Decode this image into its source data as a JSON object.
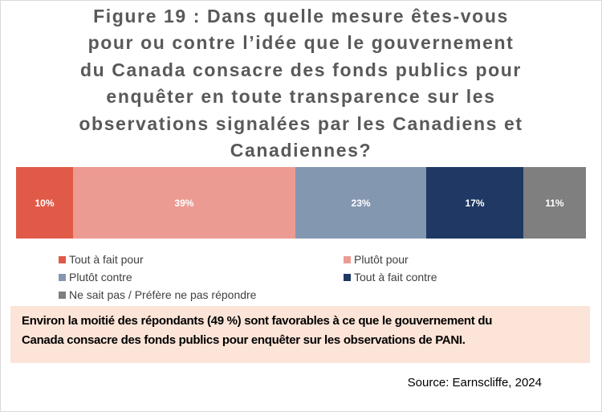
{
  "title_lines": [
    "Figure 19 : Dans quelle mesure êtes-vous",
    "pour ou contre l’idée que le gouvernement",
    "du Canada consacre des fonds publics pour",
    "enquêter en toute transparence sur les",
    "observations signalées par les Canadiens et",
    "Canadiennes?"
  ],
  "chart_data": {
    "type": "bar",
    "orientation": "horizontal-stacked-100",
    "categories": [
      "Tout à fait pour",
      "Plutôt pour",
      "Plutôt contre",
      "Tout à fait contre",
      "Ne sait pas / Préfère ne pas répondre"
    ],
    "values": [
      10,
      39,
      23,
      17,
      11
    ],
    "data_labels": [
      "10%",
      "39%",
      "23%",
      "17%",
      "11%"
    ],
    "colors": [
      "#e05a47",
      "#ec9b92",
      "#8497b0",
      "#1f3864",
      "#7f7f7f"
    ],
    "legend_placement": "bottom",
    "grid": false
  },
  "callout_lines": [
    "Environ la moitié des répondants (49 %) sont favorables à ce que le gouvernement du",
    "Canada consacre des fonds publics pour enquêter sur les observations de PANI."
  ],
  "source": "Source: Earnscliffe, 2024"
}
